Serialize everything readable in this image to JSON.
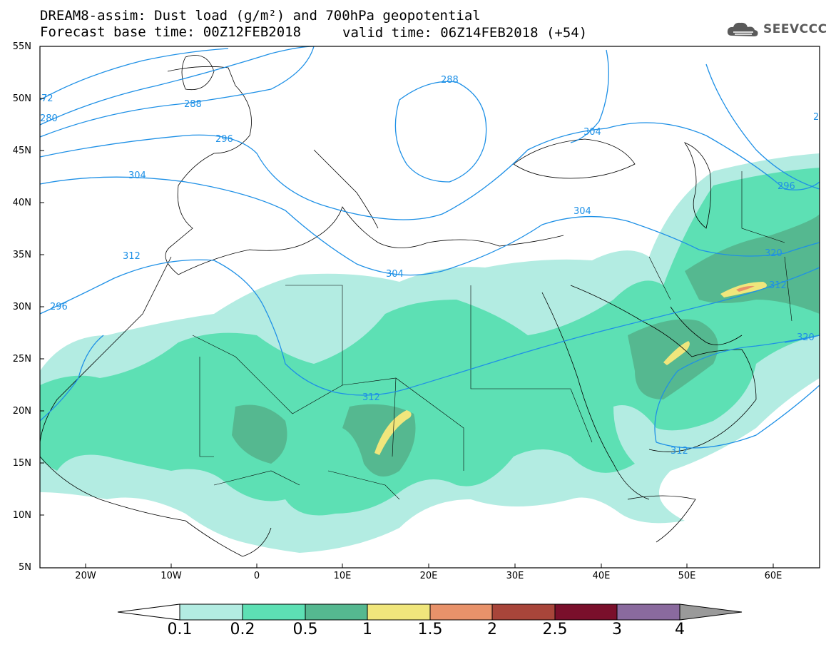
{
  "header": {
    "title_line1": "DREAM8-assim: Dust load (g/m²) and 700hPa geopotential",
    "title_line2": "Forecast base time: 00Z12FEB2018",
    "valid_time": "valid time: 06Z14FEB2018 (+54)",
    "logo_text": "SEEVCCC"
  },
  "axes": {
    "lat_labels": [
      "55N",
      "50N",
      "45N",
      "40N",
      "35N",
      "30N",
      "25N",
      "20N",
      "15N",
      "10N",
      "5N"
    ],
    "lon_labels": [
      "20W",
      "10W",
      "0",
      "10E",
      "20E",
      "30E",
      "40E",
      "50E",
      "60E"
    ]
  },
  "contours": {
    "labels": [
      "288",
      "280",
      "72",
      "296",
      "304",
      "312",
      "304",
      "312",
      "304",
      "312",
      "288",
      "296",
      "296",
      "304",
      "312",
      "320",
      "320",
      "2"
    ],
    "color": "#1e90e6"
  },
  "colorbar": {
    "labels": [
      "0.1",
      "0.2",
      "0.5",
      "1",
      "1.5",
      "2",
      "2.5",
      "3",
      "4"
    ],
    "colors": [
      "#b3ece2",
      "#5de0b4",
      "#55b890",
      "#f0e67c",
      "#e8926a",
      "#a8453a",
      "#7a0f2b",
      "#8a6a9e",
      "#9a9a9a"
    ]
  },
  "dust_colors": {
    "level_0_1": "#b3ece2",
    "level_0_2": "#5de0b4",
    "level_0_5": "#55b890",
    "level_1": "#f0e67c",
    "level_1_5": "#e8926a",
    "level_2": "#a8453a"
  }
}
